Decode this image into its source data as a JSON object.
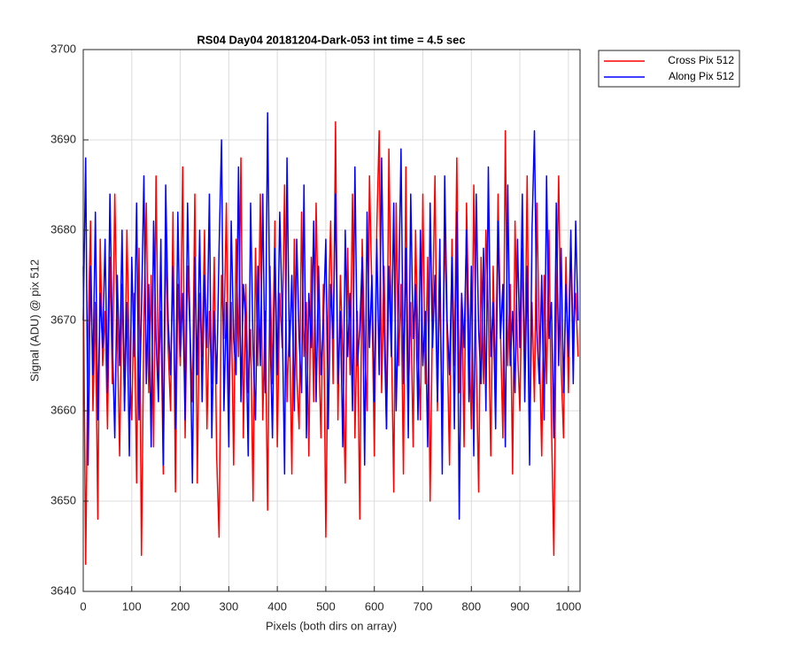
{
  "chart_data": {
    "type": "line",
    "title": "RS04 Day04 20181204-Dark-053 int time = 4.5 sec",
    "xlabel": "Pixels (both dirs on array)",
    "ylabel": "Signal (ADU) @ pix 512",
    "xlim": [
      0,
      1024
    ],
    "ylim": [
      3640,
      3700
    ],
    "xticks": [
      0,
      100,
      200,
      300,
      400,
      500,
      600,
      700,
      800,
      900,
      1000
    ],
    "yticks": [
      3640,
      3650,
      3660,
      3670,
      3680,
      3690,
      3700
    ],
    "grid": true,
    "legend": "northeastoutside",
    "x": [
      0,
      5,
      10,
      15,
      20,
      25,
      30,
      35,
      40,
      45,
      50,
      55,
      60,
      65,
      70,
      75,
      80,
      85,
      90,
      95,
      100,
      105,
      110,
      115,
      120,
      125,
      130,
      135,
      140,
      145,
      150,
      155,
      160,
      165,
      170,
      175,
      180,
      185,
      190,
      195,
      200,
      205,
      210,
      215,
      220,
      225,
      230,
      235,
      240,
      245,
      250,
      255,
      260,
      265,
      270,
      275,
      280,
      285,
      290,
      295,
      300,
      305,
      310,
      315,
      320,
      325,
      330,
      335,
      340,
      345,
      350,
      355,
      360,
      365,
      370,
      375,
      380,
      385,
      390,
      395,
      400,
      405,
      410,
      415,
      420,
      425,
      430,
      435,
      440,
      445,
      450,
      455,
      460,
      465,
      470,
      475,
      480,
      485,
      490,
      495,
      500,
      505,
      510,
      515,
      520,
      525,
      530,
      535,
      540,
      545,
      550,
      555,
      560,
      565,
      570,
      575,
      580,
      585,
      590,
      595,
      600,
      605,
      610,
      615,
      620,
      625,
      630,
      635,
      640,
      645,
      650,
      655,
      660,
      665,
      670,
      675,
      680,
      685,
      690,
      695,
      700,
      705,
      710,
      715,
      720,
      725,
      730,
      735,
      740,
      745,
      750,
      755,
      760,
      765,
      770,
      775,
      780,
      785,
      790,
      795,
      800,
      805,
      810,
      815,
      820,
      825,
      830,
      835,
      840,
      845,
      850,
      855,
      860,
      865,
      870,
      875,
      880,
      885,
      890,
      895,
      900,
      905,
      910,
      915,
      920,
      925,
      930,
      935,
      940,
      945,
      950,
      955,
      960,
      965,
      970,
      975,
      980,
      985,
      990,
      995,
      1000,
      1005,
      1010,
      1015,
      1020
    ],
    "series": [
      {
        "name": "Cross Pix 512",
        "color": "#ff0000",
        "values": [
          3676,
          3643,
          3668,
          3681,
          3660,
          3672,
          3648,
          3679,
          3665,
          3671,
          3658,
          3677,
          3663,
          3684,
          3669,
          3655,
          3674,
          3661,
          3680,
          3666,
          3659,
          3673,
          3652,
          3678,
          3644,
          3670,
          3683,
          3662,
          3675,
          3656,
          3686,
          3664,
          3671,
          3653,
          3679,
          3667,
          3660,
          3682,
          3651,
          3674,
          3665,
          3687,
          3657,
          3676,
          3669,
          3661,
          3684,
          3652,
          3673,
          3666,
          3680,
          3658,
          3671,
          3663,
          3677,
          3655,
          3646,
          3675,
          3668,
          3683,
          3660,
          3672,
          3654,
          3679,
          3666,
          3688,
          3657,
          3674,
          3662,
          3669,
          3650,
          3678,
          3665,
          3684,
          3659,
          3671,
          3649,
          3676,
          3663,
          3681,
          3656,
          3673,
          3667,
          3685,
          3661,
          3670,
          3653,
          3679,
          3664,
          3658,
          3682,
          3666,
          3672,
          3655,
          3677,
          3661,
          3683,
          3668,
          3657,
          3674,
          3646,
          3670,
          3681,
          3663,
          3692,
          3659,
          3675,
          3666,
          3652,
          3678,
          3664,
          3684,
          3657,
          3671,
          3648,
          3679,
          3667,
          3660,
          3686,
          3673,
          3655,
          3680,
          3691,
          3662,
          3676,
          3658,
          3689,
          3669,
          3651,
          3683,
          3665,
          3674,
          3653,
          3687,
          3661,
          3672,
          3656,
          3680,
          3667,
          3659,
          3684,
          3663,
          3677,
          3650,
          3671,
          3686,
          3660,
          3675,
          3657,
          3681,
          3668,
          3654,
          3679,
          3665,
          3688,
          3662,
          3673,
          3656,
          3683,
          3669,
          3658,
          3685,
          3666,
          3651,
          3677,
          3663,
          3680,
          3671,
          3655,
          3676,
          3662,
          3684,
          3669,
          3657,
          3691,
          3665,
          3674,
          3653,
          3681,
          3667,
          3660,
          3678,
          3664,
          3686,
          3656,
          3672,
          3661,
          3683,
          3668,
          3655,
          3675,
          3663,
          3680,
          3659,
          3644,
          3671,
          3686,
          3665,
          3657,
          3677,
          3662,
          3679,
          3668,
          3673,
          3666
        ]
      },
      {
        "name": "Along Pix 512",
        "color": "#0000ff",
        "values": [
          3670,
          3688,
          3654,
          3676,
          3664,
          3682,
          3659,
          3673,
          3667,
          3679,
          3662,
          3684,
          3668,
          3657,
          3675,
          3665,
          3680,
          3660,
          3672,
          3655,
          3677,
          3666,
          3683,
          3659,
          3671,
          3686,
          3663,
          3674,
          3656,
          3681,
          3668,
          3661,
          3679,
          3654,
          3685,
          3670,
          3664,
          3676,
          3658,
          3682,
          3666,
          3673,
          3659,
          3683,
          3669,
          3652,
          3677,
          3664,
          3680,
          3661,
          3675,
          3667,
          3684,
          3657,
          3671,
          3663,
          3678,
          3690,
          3660,
          3672,
          3656,
          3681,
          3668,
          3664,
          3687,
          3661,
          3674,
          3670,
          3655,
          3683,
          3667,
          3659,
          3676,
          3665,
          3684,
          3662,
          3693,
          3669,
          3657,
          3678,
          3664,
          3682,
          3671,
          3653,
          3688,
          3666,
          3675,
          3660,
          3679,
          3668,
          3662,
          3685,
          3657,
          3673,
          3667,
          3681,
          3661,
          3676,
          3664,
          3670,
          3679,
          3658,
          3674,
          3668,
          3684,
          3663,
          3671,
          3656,
          3680,
          3666,
          3673,
          3660,
          3687,
          3665,
          3669,
          3677,
          3654,
          3682,
          3667,
          3675,
          3661,
          3679,
          3664,
          3688,
          3670,
          3658,
          3676,
          3666,
          3683,
          3660,
          3672,
          3689,
          3663,
          3678,
          3657,
          3684,
          3668,
          3674,
          3659,
          3680,
          3665,
          3671,
          3656,
          3683,
          3667,
          3675,
          3661,
          3679,
          3653,
          3686,
          3670,
          3664,
          3677,
          3658,
          3682,
          3648,
          3673,
          3667,
          3680,
          3661,
          3676,
          3655,
          3684,
          3669,
          3663,
          3678,
          3660,
          3687,
          3666,
          3672,
          3658,
          3681,
          3668,
          3674,
          3656,
          3685,
          3665,
          3671,
          3662,
          3679,
          3667,
          3684,
          3661,
          3676,
          3654,
          3680,
          3691,
          3669,
          3663,
          3675,
          3659,
          3686,
          3668,
          3672,
          3657,
          3683,
          3665,
          3678,
          3662,
          3674,
          3666,
          3680,
          3663,
          3681,
          3670
        ]
      }
    ]
  }
}
